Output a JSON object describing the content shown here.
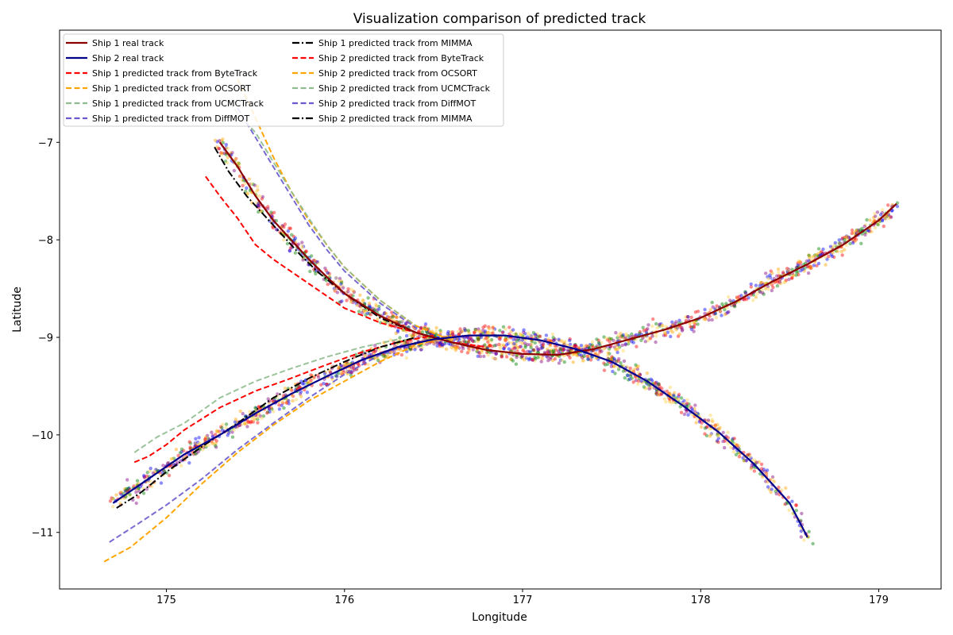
{
  "chart_data": {
    "type": "line",
    "title": "Visualization comparison of predicted track",
    "xlabel": "Longitude",
    "ylabel": "Latitude",
    "xlim": [
      174.4,
      179.35
    ],
    "ylim": [
      -11.58,
      -5.85
    ],
    "xticks": [
      175,
      176,
      177,
      178,
      179
    ],
    "yticks": [
      -11,
      -10,
      -9,
      -8,
      -7
    ],
    "grid": false,
    "legend_position": "top-left",
    "series": [
      {
        "name": "Ship 1 real track",
        "color": "#8b0000",
        "dash": "solid",
        "x": [
          175.3,
          175.4,
          175.5,
          175.6,
          175.7,
          175.8,
          175.9,
          176.0,
          176.2,
          176.4,
          176.6,
          176.8,
          177.0,
          177.2,
          177.4,
          177.6,
          177.8,
          178.0,
          178.2,
          178.4,
          178.6,
          178.8,
          179.0,
          179.1
        ],
        "y": [
          -7.0,
          -7.25,
          -7.55,
          -7.8,
          -8.0,
          -8.2,
          -8.38,
          -8.55,
          -8.78,
          -8.95,
          -9.05,
          -9.13,
          -9.17,
          -9.18,
          -9.12,
          -9.02,
          -8.92,
          -8.8,
          -8.63,
          -8.43,
          -8.25,
          -8.05,
          -7.8,
          -7.63
        ]
      },
      {
        "name": "Ship 2 real track",
        "color": "#00008b",
        "dash": "solid",
        "x": [
          174.7,
          174.9,
          175.1,
          175.3,
          175.5,
          175.7,
          175.9,
          176.1,
          176.3,
          176.5,
          176.7,
          176.9,
          177.1,
          177.3,
          177.5,
          177.7,
          177.9,
          178.1,
          178.3,
          178.5,
          178.6
        ],
        "y": [
          -10.7,
          -10.45,
          -10.2,
          -10.0,
          -9.78,
          -9.58,
          -9.4,
          -9.23,
          -9.1,
          -9.02,
          -8.98,
          -8.98,
          -9.03,
          -9.12,
          -9.25,
          -9.45,
          -9.7,
          -9.97,
          -10.3,
          -10.7,
          -11.05
        ]
      },
      {
        "name": "Ship 1 predicted track from ByteTrack",
        "color": "#ff0000",
        "dash": "dashed",
        "x": [
          175.22,
          175.3,
          175.4,
          175.5,
          175.6,
          175.8,
          176.0,
          176.2,
          176.4,
          176.6,
          176.8
        ],
        "y": [
          -7.35,
          -7.55,
          -7.78,
          -8.05,
          -8.2,
          -8.45,
          -8.7,
          -8.85,
          -8.95,
          -9.05,
          -9.1
        ]
      },
      {
        "name": "Ship 1 predicted track from OCSORT",
        "color": "#ffa500",
        "dash": "dashed",
        "x": [
          175.4,
          175.5,
          175.6,
          175.7,
          175.8,
          175.9,
          176.0,
          176.2,
          176.4,
          176.6
        ],
        "y": [
          -6.35,
          -6.75,
          -7.15,
          -7.5,
          -7.8,
          -8.05,
          -8.28,
          -8.62,
          -8.88,
          -9.03
        ]
      },
      {
        "name": "Ship 1 predicted track from UCMCTrack",
        "color": "#8fbc8f",
        "dash": "dashed",
        "x": [
          175.35,
          175.5,
          175.6,
          175.7,
          175.8,
          175.9,
          176.0,
          176.2,
          176.4
        ],
        "y": [
          -6.6,
          -6.9,
          -7.2,
          -7.5,
          -7.78,
          -8.05,
          -8.28,
          -8.62,
          -8.88
        ]
      },
      {
        "name": "Ship 1 predicted track from DiffMOT",
        "color": "#6a5acd",
        "dash": "dashed",
        "x": [
          175.4,
          175.5,
          175.6,
          175.7,
          175.8,
          175.9,
          176.0,
          176.2,
          176.4
        ],
        "y": [
          -6.65,
          -6.95,
          -7.25,
          -7.55,
          -7.85,
          -8.1,
          -8.32,
          -8.65,
          -8.9
        ]
      },
      {
        "name": "Ship 1 predicted track from MIMMA",
        "color": "#000000",
        "dash": "dashdot",
        "x": [
          175.27,
          175.35,
          175.45,
          175.55,
          175.65,
          175.75,
          175.85,
          176.0,
          176.2,
          176.4,
          176.6
        ],
        "y": [
          -7.05,
          -7.3,
          -7.55,
          -7.75,
          -7.95,
          -8.15,
          -8.33,
          -8.55,
          -8.8,
          -8.95,
          -9.05
        ]
      },
      {
        "name": "Ship 2 predicted track from ByteTrack",
        "color": "#ff0000",
        "dash": "dashed",
        "x": [
          174.82,
          174.9,
          175.0,
          175.1,
          175.3,
          175.5,
          175.7,
          175.9,
          176.1,
          176.3,
          176.5
        ],
        "y": [
          -10.28,
          -10.22,
          -10.1,
          -9.95,
          -9.72,
          -9.55,
          -9.42,
          -9.28,
          -9.15,
          -9.05,
          -8.98
        ]
      },
      {
        "name": "Ship 2 predicted track from OCSORT",
        "color": "#ffa500",
        "dash": "dashed",
        "x": [
          174.65,
          174.8,
          175.0,
          175.2,
          175.4,
          175.6,
          175.8,
          176.0,
          176.2,
          176.4,
          176.6
        ],
        "y": [
          -11.3,
          -11.15,
          -10.85,
          -10.5,
          -10.18,
          -9.9,
          -9.65,
          -9.45,
          -9.25,
          -9.08,
          -8.98
        ]
      },
      {
        "name": "Ship 2 predicted track from UCMCTrack",
        "color": "#8fbc8f",
        "dash": "dashed",
        "x": [
          174.82,
          174.95,
          175.1,
          175.3,
          175.5,
          175.7,
          175.9,
          176.1,
          176.3
        ],
        "y": [
          -10.18,
          -10.02,
          -9.88,
          -9.62,
          -9.45,
          -9.32,
          -9.2,
          -9.1,
          -9.02
        ]
      },
      {
        "name": "Ship 2 predicted track from DiffMOT",
        "color": "#6a5acd",
        "dash": "dashed",
        "x": [
          174.68,
          174.85,
          175.0,
          175.2,
          175.4,
          175.6,
          175.8,
          176.0,
          176.2,
          176.4
        ],
        "y": [
          -11.1,
          -10.9,
          -10.72,
          -10.45,
          -10.15,
          -9.88,
          -9.62,
          -9.38,
          -9.18,
          -9.05
        ]
      },
      {
        "name": "Ship 2 predicted track from MIMMA",
        "color": "#000000",
        "dash": "dashdot",
        "x": [
          174.72,
          174.85,
          175.0,
          175.2,
          175.4,
          175.6,
          175.8,
          176.0,
          176.2,
          176.4
        ],
        "y": [
          -10.75,
          -10.6,
          -10.38,
          -10.12,
          -9.88,
          -9.62,
          -9.42,
          -9.25,
          -9.1,
          -9.0
        ]
      }
    ],
    "scatter": {
      "description": "dense noisy detection points around both tracks",
      "colors": [
        "#ff0000",
        "#0000ff",
        "#008000",
        "#ffa500",
        "#ffd24d",
        "#800080"
      ]
    }
  }
}
